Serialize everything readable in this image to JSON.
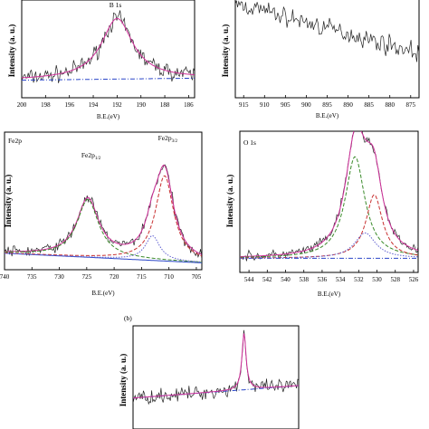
{
  "panel_b_label": "(b)",
  "chart_data": [
    {
      "id": "b1s",
      "type": "line",
      "xlabel": "B.E.(eV)",
      "ylabel": "Intensity (a. u.)",
      "xlim": [
        200,
        185.5
      ],
      "xticks": [
        200,
        198,
        196,
        194,
        192,
        190,
        188,
        186
      ],
      "annotations": [
        {
          "text": "B 1s",
          "x": 192.2
        }
      ],
      "peaks": [
        {
          "center": 192.0,
          "height": 0.62,
          "width": 1.6
        }
      ],
      "baseline": [
        0.18,
        0.2
      ],
      "noise": 0.12
    },
    {
      "id": "top-right",
      "type": "line",
      "xlabel": "B.E.(eV)",
      "ylabel": "Intensity (a. u.)",
      "xlim": [
        917,
        873
      ],
      "xticks": [
        915,
        910,
        905,
        900,
        895,
        890,
        885,
        880,
        875
      ],
      "annotations": [],
      "peaks": [],
      "trend": [
        0.95,
        0.45
      ],
      "noise": 0.14
    },
    {
      "id": "fe2p",
      "type": "line",
      "xlabel": "B.E.(eV)",
      "ylabel": "Intensity (a. u.)",
      "xlim": [
        740,
        704
      ],
      "xticks": [
        740,
        735,
        730,
        725,
        720,
        715,
        710,
        705
      ],
      "annotations": [
        {
          "text": "Fe2p",
          "sub": "",
          "pos": "top-left"
        },
        {
          "text": "Fe2p",
          "sub": "1/2",
          "x": 725
        },
        {
          "text": "Fe2p",
          "sub": "3/2",
          "x": 711
        }
      ],
      "peaks": [
        {
          "center": 724.8,
          "height": 0.42,
          "width": 2.4
        },
        {
          "center": 710.8,
          "height": 0.62,
          "width": 2.0
        },
        {
          "center": 713.0,
          "height": 0.18,
          "width": 1.6
        }
      ],
      "baseline": [
        0.12,
        0.05
      ],
      "noise": 0.06
    },
    {
      "id": "o1s",
      "type": "line",
      "xlabel": "B.E.(eV)",
      "ylabel": "Intensity (a. u.)",
      "xlim": [
        545,
        525.5
      ],
      "xticks": [
        544,
        542,
        540,
        538,
        536,
        534,
        532,
        530,
        528,
        526
      ],
      "annotations": [
        {
          "text": "O 1s",
          "pos": "top-left"
        }
      ],
      "peaks": [
        {
          "center": 532.4,
          "height": 0.72,
          "width": 1.3
        },
        {
          "center": 530.3,
          "height": 0.45,
          "width": 1.1
        },
        {
          "center": 531.3,
          "height": 0.18,
          "width": 1.4
        }
      ],
      "baseline": [
        0.1,
        0.1
      ],
      "noise": 0.05
    },
    {
      "id": "bottom",
      "type": "line",
      "xlabel": "",
      "ylabel": "Intensity (a. u.)",
      "xlim": [
        0,
        1
      ],
      "xticks": [],
      "annotations": [],
      "peaks": [
        {
          "center": 0.67,
          "height": 0.55,
          "width": 0.015
        }
      ],
      "baseline": [
        0.3,
        0.42
      ],
      "noise": 0.1
    }
  ]
}
